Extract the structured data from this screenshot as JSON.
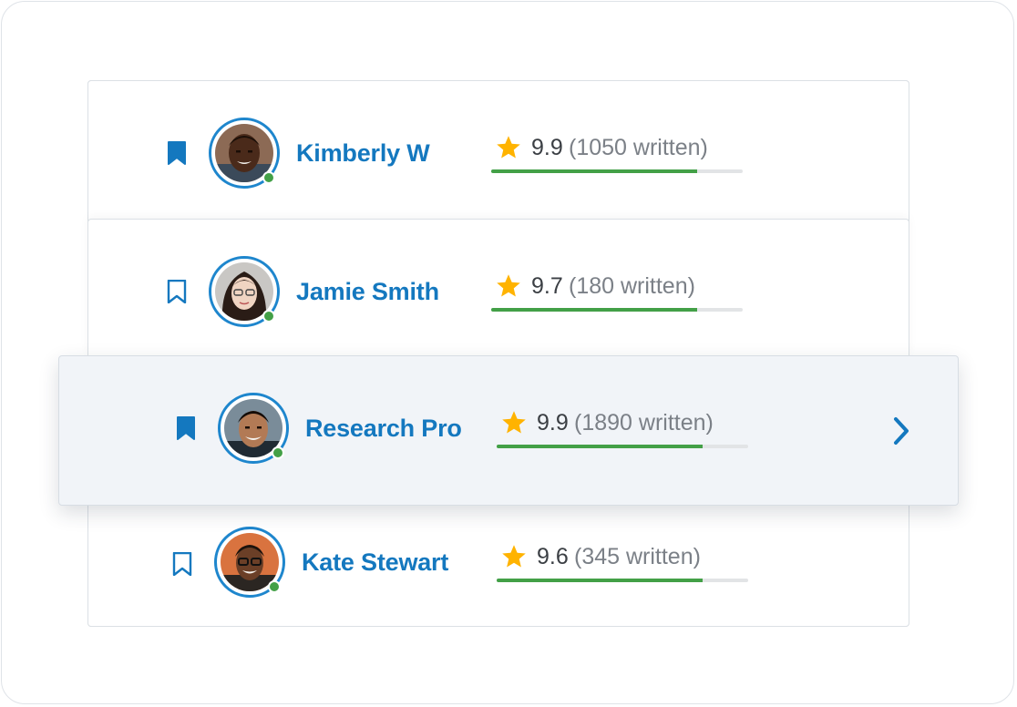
{
  "colors": {
    "accent": "#1478bf",
    "star": "#ffb300",
    "online": "#43a047",
    "progress_fill": "#43a047",
    "progress_track": "#e2e4e6"
  },
  "writers": [
    {
      "name": "Kimberly W",
      "score": "9.9",
      "written": "(1050 written)",
      "bookmarked": true,
      "online": true,
      "progress": 0.82,
      "bookmark_icon": "bookmark-filled-icon"
    },
    {
      "name": "Jamie Smith",
      "score": "9.7",
      "written": "(180 written)",
      "bookmarked": false,
      "online": true,
      "progress": 0.82,
      "bookmark_icon": "bookmark-outline-icon"
    },
    {
      "name": "Research Pro",
      "score": "9.9",
      "written": "(1890 written)",
      "bookmarked": true,
      "online": true,
      "progress": 0.82,
      "bookmark_icon": "bookmark-filled-icon",
      "active": true
    },
    {
      "name": "Kate Stewart",
      "score": "9.6",
      "written": "(345 written)",
      "bookmarked": false,
      "online": true,
      "progress": 0.82,
      "bookmark_icon": "bookmark-outline-icon"
    }
  ],
  "active_row_icon": "chevron-right-icon"
}
